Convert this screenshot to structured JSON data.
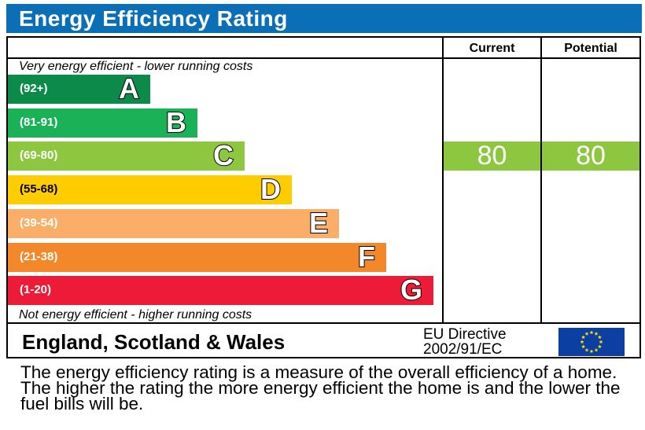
{
  "title": "Energy Efficiency Rating",
  "columns": {
    "current": "Current",
    "potential": "Potential"
  },
  "top_caption": "Very energy efficient - lower running costs",
  "bottom_caption": "Not energy efficient - higher running costs",
  "region": "England, Scotland & Wales",
  "directive": {
    "line1": "EU Directive",
    "line2": "2002/91/EC"
  },
  "description": "The energy efficiency rating is a measure of the overall efficiency of a home. The higher the rating the more energy efficient the home is and the lower the fuel bills will be.",
  "chart_data": {
    "type": "bar",
    "categories": [
      "A",
      "B",
      "C",
      "D",
      "E",
      "F",
      "G"
    ],
    "ranges": [
      "(92+)",
      "(81-91)",
      "(69-80)",
      "(55-68)",
      "(39-54)",
      "(21-38)",
      "(1-20)"
    ],
    "colors": [
      "#0c8a4a",
      "#1bb257",
      "#8dc63f",
      "#ffcc00",
      "#fbae68",
      "#f3882a",
      "#ed1b37"
    ],
    "current": {
      "value": 80,
      "band": "C",
      "color": "#8dc63f"
    },
    "potential": {
      "value": 80,
      "band": "C",
      "color": "#8dc63f"
    }
  }
}
